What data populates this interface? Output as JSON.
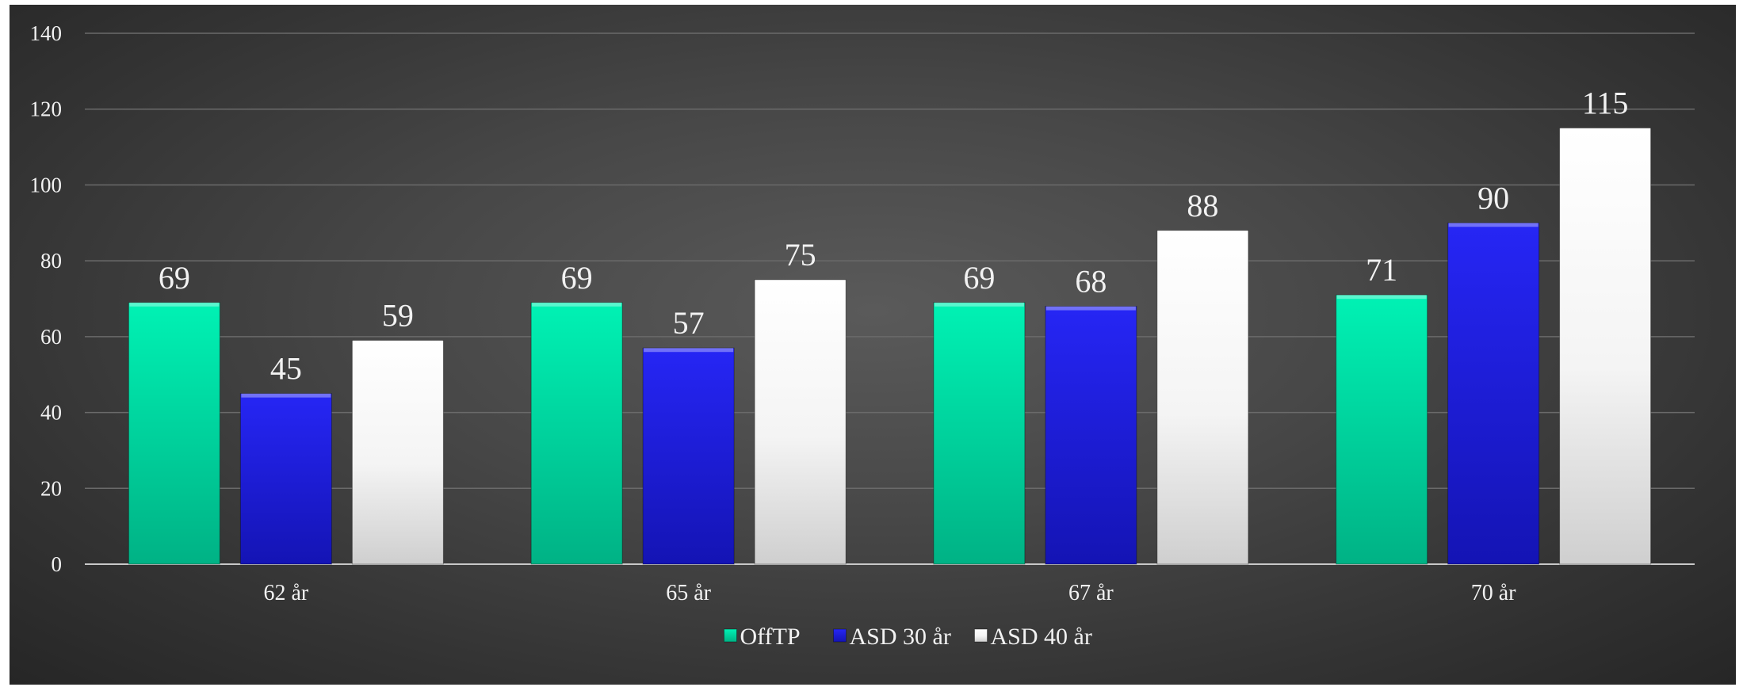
{
  "chart_data": {
    "type": "bar",
    "categories": [
      "62 år",
      "65 år",
      "67 år",
      "70 år"
    ],
    "series": [
      {
        "name": "OffTP",
        "values": [
          69,
          69,
          69,
          71
        ],
        "color": "#00d9a4"
      },
      {
        "name": "ASD 30 år",
        "values": [
          45,
          57,
          68,
          90
        ],
        "color": "#1c1ce0"
      },
      {
        "name": "ASD 40 år",
        "values": [
          59,
          75,
          88,
          115
        ],
        "color": "#f2f2f2"
      }
    ],
    "ylim": [
      0,
      140
    ],
    "yticks": [
      0,
      20,
      40,
      60,
      80,
      100,
      120,
      140
    ],
    "grid": true,
    "legend": "bottom",
    "data_labels": true,
    "background": "#404040"
  }
}
